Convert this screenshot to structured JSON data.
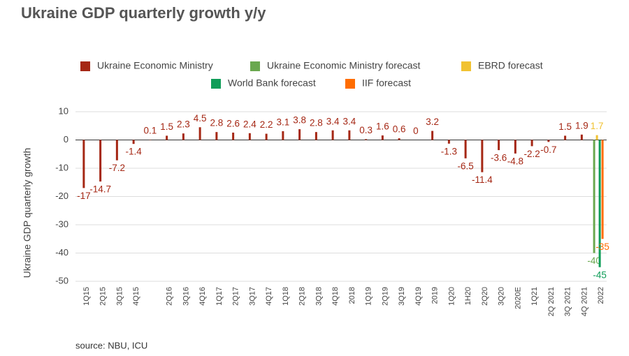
{
  "chart_data": {
    "type": "bar",
    "title": "Ukraine GDP quarterly growth y/y",
    "y_axis_label": "Ukraine GDP quarterly growth",
    "source": "source: NBU, ICU",
    "categories": [
      "1Q15",
      "2Q15",
      "3Q15",
      "4Q15",
      null,
      "2Q16",
      "3Q16",
      "4Q16",
      "1Q17",
      "2Q17",
      "3Q17",
      "4Q17",
      "1Q18",
      "2Q18",
      "3Q18",
      "4Q18",
      "2018",
      "1Q19",
      "2Q19",
      "3Q19",
      "4Q19",
      "2019",
      "1Q20",
      "1H20",
      "2Q20",
      "3Q20",
      "2020E",
      "1Q21",
      "2Q 2021",
      "3Q 2021",
      "4Q 2021",
      "2022"
    ],
    "series": [
      {
        "name": "Ukraine Economic Ministry",
        "color": "#a52714",
        "values": [
          -17,
          -14.7,
          -7.2,
          -1.4,
          0.1,
          1.5,
          2.3,
          4.5,
          2.8,
          2.6,
          2.4,
          2.2,
          3.1,
          3.8,
          2.8,
          3.4,
          3.4,
          0.3,
          1.6,
          0.6,
          0,
          3.2,
          -1.3,
          -6.5,
          -11.4,
          -3.6,
          -4.8,
          -2.2,
          -0.7,
          1.5,
          1.9,
          null
        ]
      },
      {
        "name": "Ukraine Economic Ministry forecast",
        "color": "#6aa84f",
        "values": [
          null,
          null,
          null,
          null,
          null,
          null,
          null,
          null,
          null,
          null,
          null,
          null,
          null,
          null,
          null,
          null,
          null,
          null,
          null,
          null,
          null,
          null,
          null,
          null,
          null,
          null,
          null,
          null,
          null,
          null,
          null,
          -40
        ]
      },
      {
        "name": "EBRD forecast",
        "color": "#f1c232",
        "values": [
          null,
          null,
          null,
          null,
          null,
          null,
          null,
          null,
          null,
          null,
          null,
          null,
          null,
          null,
          null,
          null,
          null,
          null,
          null,
          null,
          null,
          null,
          null,
          null,
          null,
          null,
          null,
          null,
          null,
          null,
          null,
          1.7
        ]
      },
      {
        "name": "World Bank forecast",
        "color": "#0f9d58",
        "values": [
          null,
          null,
          null,
          null,
          null,
          null,
          null,
          null,
          null,
          null,
          null,
          null,
          null,
          null,
          null,
          null,
          null,
          null,
          null,
          null,
          null,
          null,
          null,
          null,
          null,
          null,
          null,
          null,
          null,
          null,
          null,
          -45
        ]
      },
      {
        "name": "IIF forecast",
        "color": "#ff6d01",
        "values": [
          null,
          null,
          null,
          null,
          null,
          null,
          null,
          null,
          null,
          null,
          null,
          null,
          null,
          null,
          null,
          null,
          null,
          null,
          null,
          null,
          null,
          null,
          null,
          null,
          null,
          null,
          null,
          null,
          null,
          null,
          null,
          -35
        ]
      }
    ],
    "ylim": [
      -50,
      10
    ],
    "yticks": [
      -50,
      -40,
      -30,
      -20,
      -10,
      0,
      10
    ],
    "grid": true
  }
}
